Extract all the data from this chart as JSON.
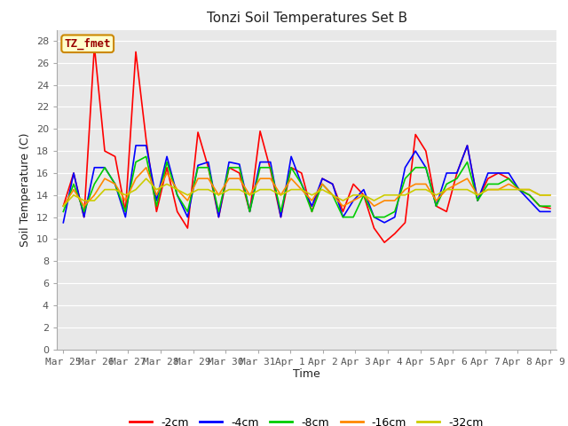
{
  "title": "Tonzi Soil Temperatures Set B",
  "xlabel": "Time",
  "ylabel": "Soil Temperature (C)",
  "annotation": "TZ_fmet",
  "ylim": [
    0,
    29
  ],
  "yticks": [
    0,
    2,
    4,
    6,
    8,
    10,
    12,
    14,
    16,
    18,
    20,
    22,
    24,
    26,
    28
  ],
  "plot_bg": "#e8e8e8",
  "fig_bg": "#ffffff",
  "series": {
    "-2cm": {
      "color": "#ff0000",
      "data": [
        13.0,
        16.0,
        12.0,
        27.5,
        18.0,
        17.5,
        12.5,
        27.0,
        19.0,
        12.5,
        16.5,
        12.5,
        11.0,
        19.7,
        16.5,
        12.0,
        16.5,
        16.0,
        12.5,
        19.8,
        16.3,
        12.0,
        16.5,
        16.0,
        12.5,
        15.5,
        15.0,
        12.5,
        15.0,
        14.0,
        11.0,
        9.7,
        10.5,
        11.5,
        19.5,
        18.0,
        13.0,
        12.5,
        16.0,
        18.5,
        13.5,
        15.5,
        16.0,
        15.5,
        14.5,
        14.0,
        13.0,
        12.8
      ]
    },
    "-4cm": {
      "color": "#0000ff",
      "data": [
        11.5,
        16.0,
        12.0,
        16.5,
        16.5,
        15.0,
        12.0,
        18.5,
        18.5,
        13.5,
        17.5,
        14.0,
        12.0,
        16.7,
        17.0,
        12.0,
        17.0,
        16.8,
        12.5,
        17.0,
        17.0,
        12.0,
        17.5,
        15.0,
        13.0,
        15.5,
        15.0,
        12.0,
        13.5,
        14.5,
        12.0,
        11.5,
        12.0,
        16.5,
        18.0,
        16.5,
        13.0,
        16.0,
        16.0,
        18.5,
        13.5,
        16.0,
        16.0,
        16.0,
        14.5,
        13.5,
        12.5,
        12.5
      ]
    },
    "-8cm": {
      "color": "#00cc00",
      "data": [
        12.5,
        15.0,
        12.5,
        15.0,
        16.5,
        15.0,
        12.5,
        17.0,
        17.5,
        13.0,
        17.0,
        14.0,
        12.5,
        16.5,
        16.5,
        12.5,
        16.5,
        16.5,
        12.5,
        16.5,
        16.5,
        12.5,
        16.5,
        15.0,
        12.5,
        15.0,
        14.0,
        12.0,
        12.0,
        14.0,
        12.0,
        12.0,
        12.5,
        15.5,
        16.5,
        16.5,
        13.0,
        15.0,
        15.5,
        17.0,
        13.5,
        15.0,
        15.0,
        15.5,
        14.5,
        14.0,
        13.0,
        13.0
      ]
    },
    "-16cm": {
      "color": "#ff8800",
      "data": [
        13.0,
        14.5,
        13.0,
        14.0,
        15.5,
        15.0,
        13.5,
        15.5,
        16.5,
        14.0,
        16.0,
        14.5,
        13.5,
        15.5,
        15.5,
        14.0,
        15.5,
        15.5,
        14.0,
        15.5,
        15.5,
        14.0,
        15.5,
        14.5,
        13.5,
        15.0,
        14.0,
        13.0,
        13.5,
        14.0,
        13.0,
        13.5,
        13.5,
        14.5,
        15.0,
        15.0,
        13.5,
        14.5,
        15.0,
        15.5,
        14.0,
        14.5,
        14.5,
        15.0,
        14.5,
        14.5,
        14.0,
        14.0
      ]
    },
    "-32cm": {
      "color": "#cccc00",
      "data": [
        13.0,
        14.0,
        13.5,
        13.5,
        14.5,
        14.5,
        14.0,
        14.5,
        15.5,
        14.5,
        15.0,
        14.5,
        14.0,
        14.5,
        14.5,
        14.0,
        14.5,
        14.5,
        14.0,
        14.5,
        14.5,
        14.0,
        14.5,
        14.5,
        14.0,
        14.5,
        14.0,
        13.5,
        14.0,
        14.0,
        13.5,
        14.0,
        14.0,
        14.0,
        14.5,
        14.5,
        14.0,
        14.5,
        14.5,
        14.5,
        14.0,
        14.5,
        14.5,
        14.5,
        14.5,
        14.5,
        14.0,
        14.0
      ]
    }
  },
  "xtick_labels": [
    "Mar 25",
    "Mar 26",
    "Mar 27",
    "Mar 28",
    "Mar 29",
    "Mar 30",
    "Mar 31",
    "Apr 1",
    "Apr 2",
    "Apr 3",
    "Apr 4",
    "Apr 5",
    "Apr 6",
    "Apr 7",
    "Apr 8",
    "Apr 9"
  ],
  "n_days": 16,
  "ppd": 3,
  "legend_order": [
    "-2cm",
    "-4cm",
    "-8cm",
    "-16cm",
    "-32cm"
  ],
  "title_fontsize": 11,
  "axis_label_fontsize": 9,
  "tick_fontsize": 8,
  "legend_fontsize": 9
}
